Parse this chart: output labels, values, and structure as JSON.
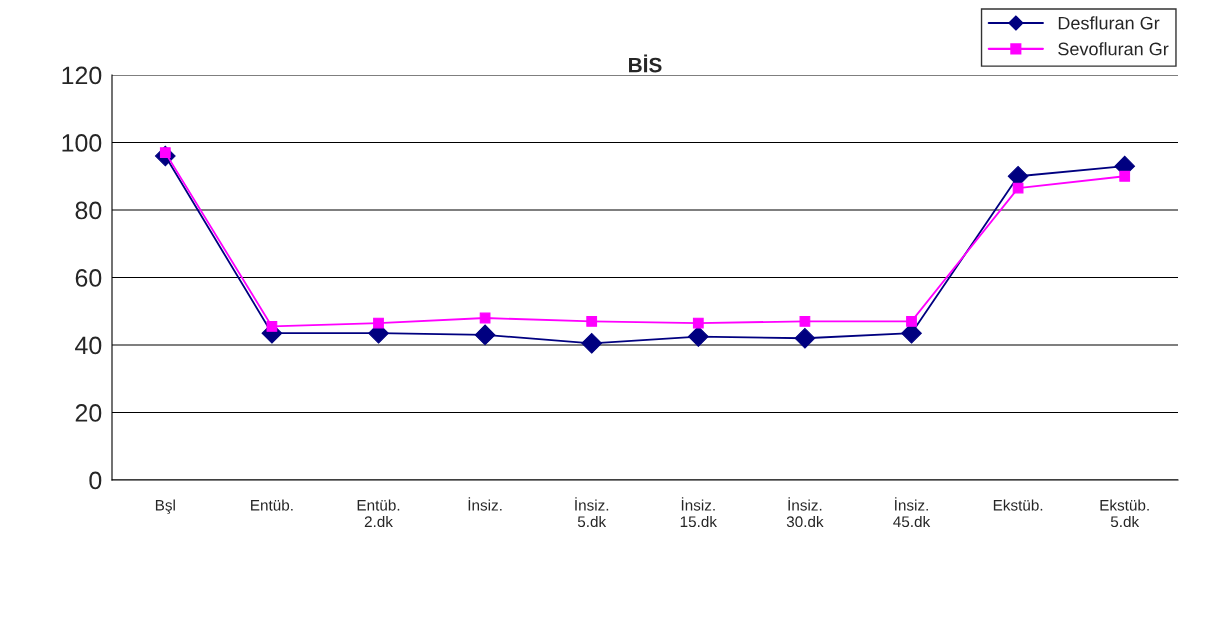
{
  "chart_data": {
    "type": "line",
    "title": "BİS",
    "categories": [
      "Bşl",
      "Entüb.",
      "Entüb.\n2.dk",
      "İnsiz.",
      "İnsiz.\n5.dk",
      "İnsiz.\n15.dk",
      "İnsiz.\n30.dk",
      "İnsiz.\n45.dk",
      "Ekstüb.",
      "Ekstüb.\n5.dk"
    ],
    "series": [
      {
        "name": "Desfluran Gr",
        "color": "#000080",
        "marker": "diamond",
        "values": [
          96,
          43.5,
          43.5,
          43,
          40.5,
          42.5,
          42,
          43.5,
          90,
          93
        ]
      },
      {
        "name": "Sevofluran Gr",
        "color": "#ff00ff",
        "marker": "square",
        "values": [
          97,
          45.5,
          46.5,
          48,
          47,
          46.5,
          47,
          47,
          86.5,
          90
        ]
      }
    ],
    "ylim": [
      0,
      120
    ],
    "yticks": [
      0,
      20,
      40,
      60,
      80,
      100,
      120
    ],
    "grid": "y",
    "legend": "top right",
    "line_style": "solid"
  }
}
